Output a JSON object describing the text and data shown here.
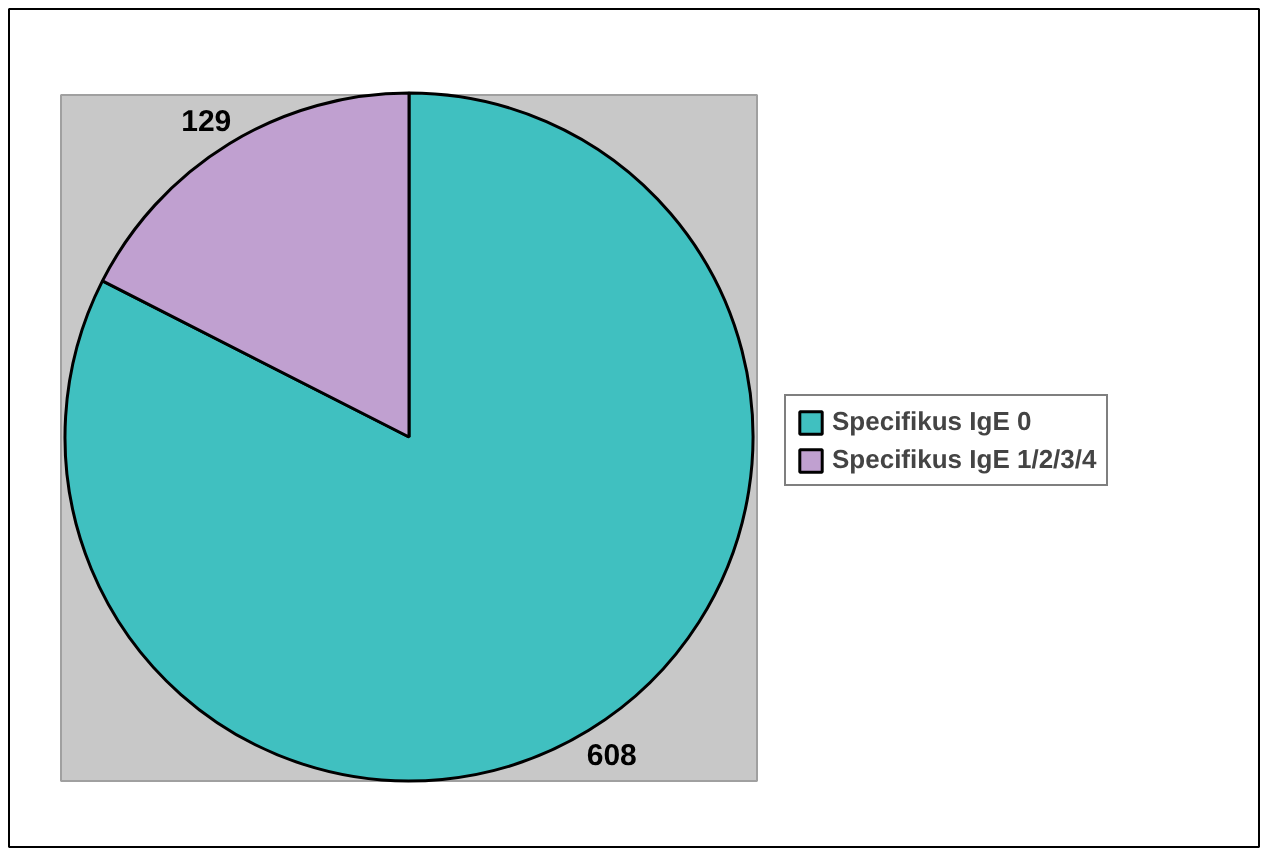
{
  "chart_data": {
    "type": "pie",
    "categories": [
      "Specifikus IgE 0",
      "Specifikus IgE 1/2/3/4"
    ],
    "values": [
      608,
      129
    ],
    "colors": [
      "#40c0c0",
      "#c0a0d0"
    ],
    "data_labels": true,
    "legend": "right"
  }
}
